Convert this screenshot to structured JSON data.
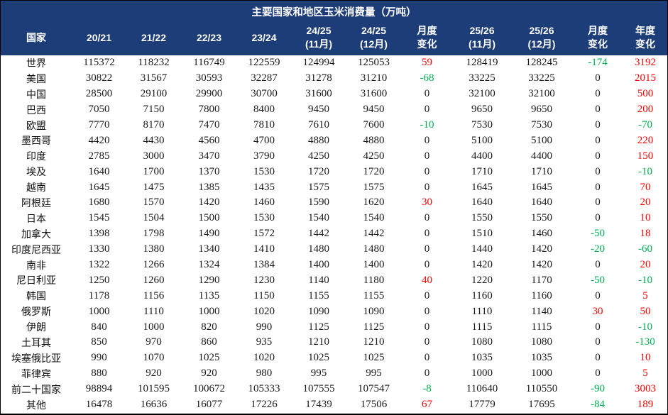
{
  "title": "主要国家和地区玉米消费量（万吨）",
  "colors": {
    "header_bg": "#1d3d78",
    "header_text": "#ffffff",
    "positive_change": "#ff0000",
    "negative_change": "#00b050",
    "body_text": "#1a1a1a",
    "border": "#000000"
  },
  "chart_data": {
    "type": "table",
    "title": "主要国家和地区玉米消费量（万吨）",
    "country_column_header": "国家",
    "columns": [
      {
        "l1": "20/21",
        "l2": ""
      },
      {
        "l1": "21/22",
        "l2": ""
      },
      {
        "l1": "22/23",
        "l2": ""
      },
      {
        "l1": "23/24",
        "l2": ""
      },
      {
        "l1": "24/25",
        "l2": "(11月)"
      },
      {
        "l1": "24/25",
        "l2": "(12月)"
      },
      {
        "l1": "月度",
        "l2": "变化"
      },
      {
        "l1": "25/26",
        "l2": "(11月)"
      },
      {
        "l1": "25/26",
        "l2": "(12月)"
      },
      {
        "l1": "月度",
        "l2": "变化"
      },
      {
        "l1": "年度",
        "l2": "变化"
      }
    ],
    "change_column_indexes": [
      6,
      9,
      10
    ],
    "rows": [
      {
        "name": "世界",
        "values": [
          115372,
          118232,
          116749,
          122559,
          124994,
          125053,
          59,
          128419,
          128245,
          -174,
          3192
        ]
      },
      {
        "name": "美国",
        "values": [
          30822,
          31567,
          30593,
          32287,
          31278,
          31210,
          -68,
          33225,
          33225,
          0,
          2015
        ]
      },
      {
        "name": "中国",
        "values": [
          28500,
          29100,
          29900,
          30700,
          31600,
          31600,
          0,
          32100,
          32100,
          0,
          500
        ]
      },
      {
        "name": "巴西",
        "values": [
          7050,
          7150,
          7800,
          8400,
          9450,
          9450,
          0,
          9650,
          9650,
          0,
          200
        ]
      },
      {
        "name": "欧盟",
        "values": [
          7770,
          8170,
          7470,
          7810,
          7610,
          7600,
          -10,
          7530,
          7530,
          0,
          -70
        ]
      },
      {
        "name": "墨西哥",
        "values": [
          4420,
          4430,
          4560,
          4700,
          4880,
          4880,
          0,
          5100,
          5100,
          0,
          220
        ]
      },
      {
        "name": "印度",
        "values": [
          2785,
          3000,
          3470,
          3790,
          4250,
          4250,
          0,
          4400,
          4400,
          0,
          150
        ]
      },
      {
        "name": "埃及",
        "values": [
          1640,
          1700,
          1370,
          1530,
          1720,
          1720,
          0,
          1710,
          1710,
          0,
          -10
        ]
      },
      {
        "name": "越南",
        "values": [
          1645,
          1475,
          1385,
          1435,
          1575,
          1575,
          0,
          1645,
          1645,
          0,
          70
        ]
      },
      {
        "name": "阿根廷",
        "values": [
          1680,
          1570,
          1420,
          1460,
          1590,
          1620,
          30,
          1640,
          1640,
          0,
          20
        ]
      },
      {
        "name": "日本",
        "values": [
          1545,
          1504,
          1500,
          1530,
          1540,
          1540,
          0,
          1550,
          1550,
          0,
          10
        ]
      },
      {
        "name": "加拿大",
        "values": [
          1398,
          1798,
          1490,
          1572,
          1442,
          1442,
          0,
          1510,
          1460,
          -50,
          18
        ]
      },
      {
        "name": "印度尼西亚",
        "values": [
          1330,
          1380,
          1340,
          1410,
          1480,
          1480,
          0,
          1440,
          1420,
          -20,
          -60
        ]
      },
      {
        "name": "南非",
        "values": [
          1322,
          1266,
          1324,
          1384,
          1400,
          1400,
          0,
          1420,
          1420,
          0,
          20
        ]
      },
      {
        "name": "尼日利亚",
        "values": [
          1250,
          1260,
          1290,
          1230,
          1140,
          1180,
          40,
          1220,
          1170,
          -50,
          -10
        ]
      },
      {
        "name": "韩国",
        "values": [
          1178,
          1156,
          1135,
          1150,
          1155,
          1155,
          0,
          1160,
          1160,
          0,
          5
        ]
      },
      {
        "name": "俄罗斯",
        "values": [
          1000,
          1110,
          1000,
          1020,
          1090,
          1090,
          0,
          1110,
          1140,
          30,
          50
        ]
      },
      {
        "name": "伊朗",
        "values": [
          840,
          1000,
          820,
          990,
          1125,
          1125,
          0,
          1115,
          1115,
          0,
          -10
        ]
      },
      {
        "name": "土耳其",
        "values": [
          850,
          970,
          860,
          935,
          1210,
          1210,
          0,
          1080,
          1080,
          0,
          -130
        ]
      },
      {
        "name": "埃塞俄比亚",
        "values": [
          990,
          1070,
          1025,
          1020,
          1025,
          1025,
          0,
          1035,
          1035,
          0,
          10
        ]
      },
      {
        "name": "菲律宾",
        "values": [
          880,
          920,
          920,
          980,
          995,
          995,
          0,
          1000,
          1000,
          0,
          5
        ]
      },
      {
        "name": "前二十国家",
        "values": [
          98894,
          101595,
          100672,
          105333,
          107555,
          107547,
          -8,
          110640,
          110550,
          -90,
          3003
        ]
      },
      {
        "name": "其他",
        "values": [
          16478,
          16636,
          16077,
          17226,
          17439,
          17506,
          67,
          17779,
          17695,
          -84,
          189
        ]
      }
    ]
  }
}
